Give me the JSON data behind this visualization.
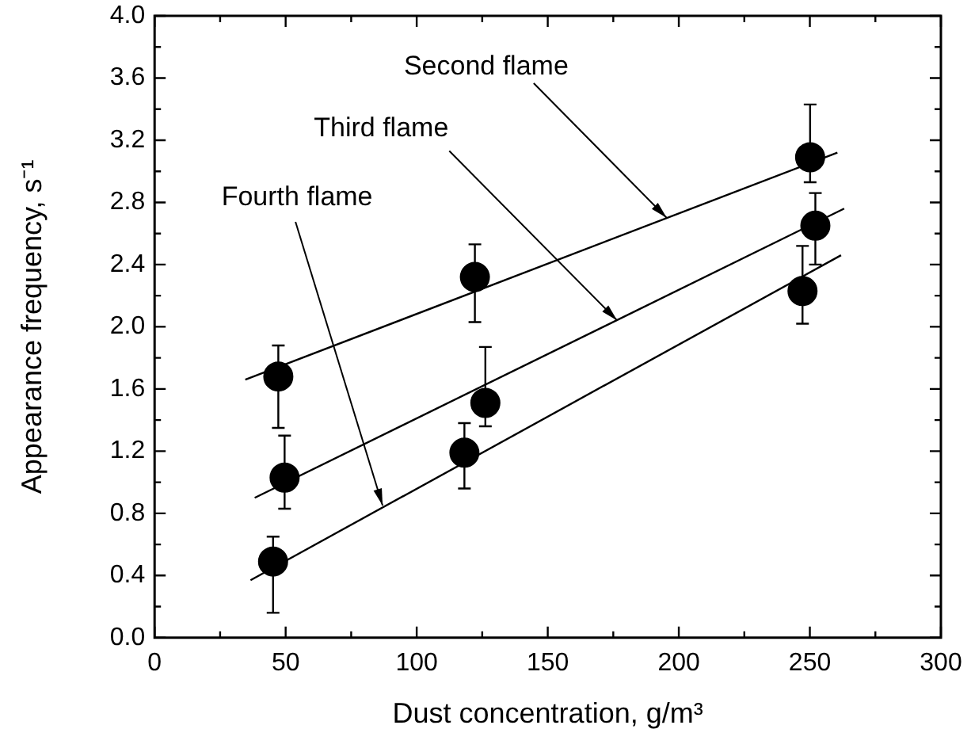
{
  "chart_data": {
    "type": "scatter",
    "xlabel": "Dust concentration, g/m³",
    "ylabel": "Appearance frequency, s⁻¹",
    "xlim": [
      0,
      300
    ],
    "xticks": [
      0,
      {
        "value": 25,
        "label": null
      },
      50,
      {
        "value": 75,
        "label": null
      },
      100,
      {
        "value": 125,
        "label": null
      },
      150,
      {
        "value": 175,
        "label": null
      },
      200,
      {
        "value": 225,
        "label": null
      },
      250,
      {
        "value": 275,
        "label": null
      },
      300
    ],
    "ylim": [
      0,
      4
    ],
    "yticks": [
      {
        "value": 0,
        "label": "0.0"
      },
      {
        "value": 0.2,
        "label": null
      },
      0.4,
      {
        "value": 0.6,
        "label": null
      },
      0.8,
      {
        "value": 1,
        "label": null
      },
      1.2,
      {
        "value": 1.4,
        "label": null
      },
      1.6,
      {
        "value": 1.8,
        "label": null
      },
      {
        "value": 2,
        "label": "2.0"
      },
      {
        "value": 2.2,
        "label": null
      },
      2.4,
      {
        "value": 2.6,
        "label": null
      },
      2.8,
      {
        "value": 3,
        "label": null
      },
      3.2,
      {
        "value": 3.4,
        "label": null
      },
      3.6,
      {
        "value": 3.8,
        "label": null
      },
      {
        "value": 4,
        "label": "4.0"
      }
    ],
    "marker": "circle",
    "legend": false,
    "series": [
      {
        "type": "scatter",
        "color": "#000000",
        "x": [
          47.2,
          49.6,
          45.2,
          122.2,
          118.2,
          126.2,
          250.1,
          252.1,
          247.2
        ],
        "values": [
          1.68,
          1.03,
          0.49,
          2.32,
          1.19,
          1.51,
          3.09,
          2.65,
          2.23
        ],
        "errors": [
          [
            1.35,
            1.88
          ],
          [
            0.83,
            1.3
          ],
          [
            0.16,
            0.65
          ],
          [
            2.03,
            2.53
          ],
          [
            0.96,
            1.38
          ],
          [
            1.36,
            1.87
          ],
          [
            2.93,
            3.43
          ],
          [
            2.4,
            2.86
          ],
          [
            2.02,
            2.52
          ]
        ]
      },
      {
        "type": "line",
        "color": "#000000",
        "marker": "none",
        "line_style": "solid",
        "x": [
          34.6,
          260.5
        ],
        "values": [
          1.66,
          3.12
        ]
      },
      {
        "type": "line",
        "color": "#000000",
        "marker": "none",
        "line_style": "solid",
        "x": [
          38.2,
          263.1
        ],
        "values": [
          0.9,
          2.76
        ]
      },
      {
        "type": "line",
        "color": "#000000",
        "marker": "none",
        "line_style": "solid",
        "x": [
          36.6,
          261.9
        ],
        "values": [
          0.37,
          2.46
        ]
      }
    ],
    "annotations": [
      {
        "text": "Second flame",
        "x": 195.4,
        "y": 2.7
      },
      {
        "text": "Third flame",
        "x": 176.5,
        "y": 2.04
      },
      {
        "text": "Fourth flame",
        "x": 87,
        "y": 0.85
      }
    ]
  }
}
